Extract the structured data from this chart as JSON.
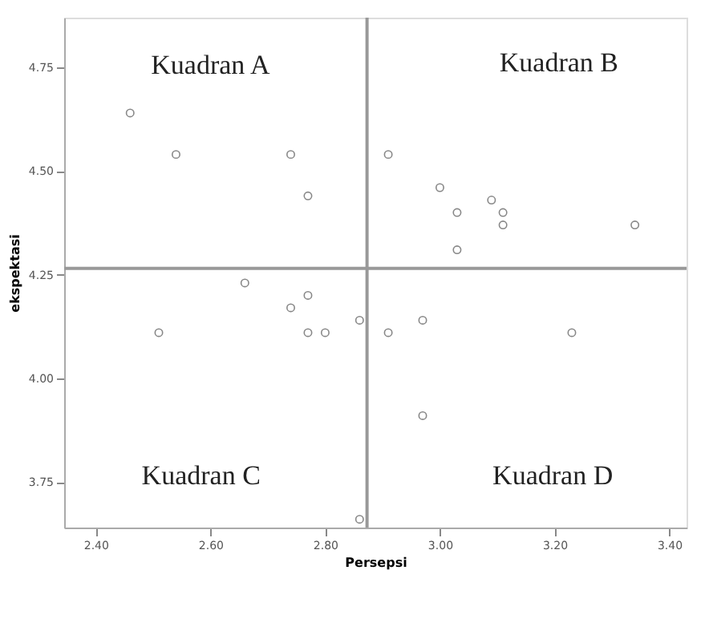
{
  "chart_data": {
    "type": "scatter",
    "xlabel": "Persepsi",
    "ylabel": "ekspektasi",
    "marker": "circle",
    "grid": false,
    "x": [
      2.46,
      2.54,
      2.74,
      2.77,
      2.91,
      3.0,
      3.03,
      3.09,
      3.11,
      3.03,
      3.11,
      3.34,
      2.66,
      2.74,
      2.77,
      2.77,
      2.8,
      2.86,
      2.91,
      2.97,
      2.51,
      3.23,
      2.97,
      2.86
    ],
    "values": [
      4.64,
      4.54,
      4.54,
      4.44,
      4.54,
      4.46,
      4.4,
      4.43,
      4.4,
      4.31,
      4.37,
      4.37,
      4.23,
      4.17,
      4.2,
      4.11,
      4.11,
      4.14,
      4.11,
      4.14,
      4.11,
      4.11,
      3.91,
      3.66
    ],
    "color": "#555555",
    "xlim": [
      2.345,
      3.43
    ],
    "ylim": [
      3.64,
      4.87
    ],
    "xticks": [
      {
        "value": 2.4,
        "label": "2.40"
      },
      {
        "value": 2.6,
        "label": "2.60"
      },
      {
        "value": 2.8,
        "label": "2.80"
      },
      {
        "value": 3.0,
        "label": "3.00"
      },
      {
        "value": 3.2,
        "label": "3.20"
      },
      {
        "value": 3.4,
        "label": "3.40"
      }
    ],
    "yticks": [
      {
        "value": 3.75,
        "label": "3.75"
      },
      {
        "value": 4.0,
        "label": "4.00"
      },
      {
        "value": 4.25,
        "label": "4.25"
      },
      {
        "value": 4.5,
        "label": "4.50"
      },
      {
        "value": 4.75,
        "label": "4.75"
      }
    ],
    "ref_lines": [
      {
        "axis": "x",
        "value": 2.873,
        "color": "#999999"
      },
      {
        "axis": "y",
        "value": 4.265,
        "color": "#999999"
      }
    ],
    "annotations": [
      "Kuadran A",
      "Kuadran B",
      "Kuadran C",
      "Kuadran D"
    ]
  }
}
